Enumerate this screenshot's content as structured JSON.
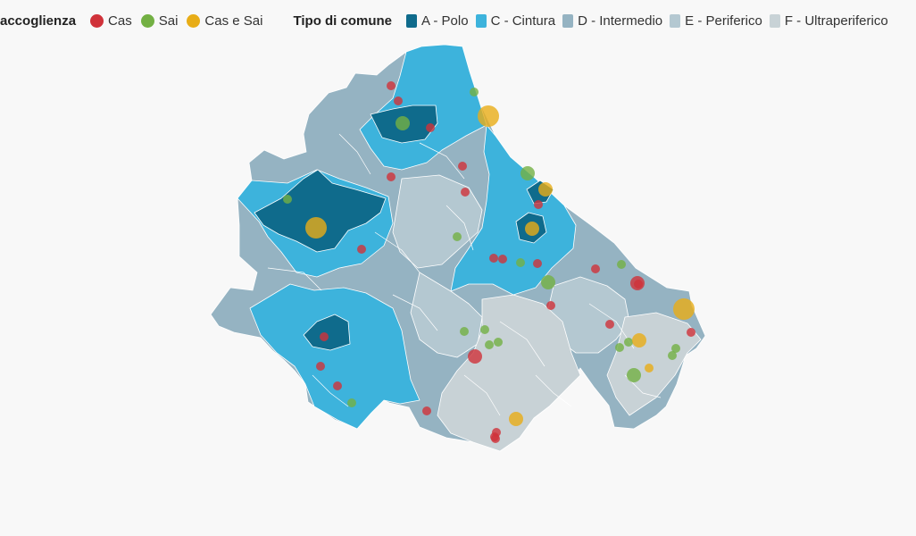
{
  "legend": {
    "acc_title": "accoglienza",
    "acc_items": [
      {
        "label": "Cas",
        "color": "#d0323a"
      },
      {
        "label": "Sai",
        "color": "#73b043"
      },
      {
        "label": "Cas e Sai",
        "color": "#e8ad17"
      }
    ],
    "tipo_title": "Tipo di comune",
    "tipo_items": [
      {
        "label": "A - Polo",
        "color": "#0f6b8c"
      },
      {
        "label": "C - Cintura",
        "color": "#3db3dc"
      },
      {
        "label": "D - Intermedio",
        "color": "#95b3c2"
      },
      {
        "label": "E - Periferico",
        "color": "#b4c8d1"
      },
      {
        "label": "F - Ultraperiferico",
        "color": "#c8d2d6"
      }
    ]
  },
  "map": {
    "region": "Abruzzo",
    "areas": [
      {
        "type": "D - Intermedio",
        "color": "#95b3c2"
      },
      {
        "type": "C - Cintura",
        "color": "#3db3dc"
      },
      {
        "type": "A - Polo",
        "color": "#0f6b8c"
      },
      {
        "type": "E - Periferico",
        "color": "#b4c8d1"
      },
      {
        "type": "F - Ultraperiferico",
        "color": "#c8d2d6"
      }
    ],
    "markers": [
      {
        "kind": "Cas",
        "size": "small"
      },
      {
        "kind": "Cas",
        "size": "small"
      },
      {
        "kind": "Sai",
        "size": "small"
      },
      {
        "kind": "Sai",
        "size": "medium"
      },
      {
        "kind": "Cas e Sai",
        "size": "large"
      },
      {
        "kind": "Cas",
        "size": "small"
      },
      {
        "kind": "Cas",
        "size": "small"
      },
      {
        "kind": "Sai",
        "size": "small"
      },
      {
        "kind": "Cas",
        "size": "small"
      },
      {
        "kind": "Sai",
        "size": "medium"
      },
      {
        "kind": "Cas e Sai",
        "size": "medium"
      },
      {
        "kind": "Cas",
        "size": "small"
      },
      {
        "kind": "Cas",
        "size": "small"
      },
      {
        "kind": "Cas e Sai",
        "size": "large"
      },
      {
        "kind": "Cas e Sai",
        "size": "medium"
      },
      {
        "kind": "Sai",
        "size": "small"
      },
      {
        "kind": "Cas",
        "size": "small"
      },
      {
        "kind": "Cas",
        "size": "small"
      },
      {
        "kind": "Cas",
        "size": "small"
      },
      {
        "kind": "Sai",
        "size": "small"
      },
      {
        "kind": "Cas",
        "size": "small"
      },
      {
        "kind": "Sai",
        "size": "small"
      },
      {
        "kind": "Cas",
        "size": "small"
      },
      {
        "kind": "Sai",
        "size": "medium"
      },
      {
        "kind": "Cas",
        "size": "small"
      },
      {
        "kind": "Cas",
        "size": "medium"
      },
      {
        "kind": "Cas",
        "size": "small"
      },
      {
        "kind": "Cas e Sai",
        "size": "large"
      },
      {
        "kind": "Cas",
        "size": "small"
      },
      {
        "kind": "Sai",
        "size": "small"
      },
      {
        "kind": "Sai",
        "size": "small"
      },
      {
        "kind": "Sai",
        "size": "small"
      },
      {
        "kind": "Sai",
        "size": "small"
      },
      {
        "kind": "Cas",
        "size": "medium"
      },
      {
        "kind": "Cas",
        "size": "small"
      },
      {
        "kind": "Sai",
        "size": "small"
      },
      {
        "kind": "Sai",
        "size": "small"
      },
      {
        "kind": "Cas e Sai",
        "size": "medium"
      },
      {
        "kind": "Cas e Sai",
        "size": "small"
      },
      {
        "kind": "Sai",
        "size": "medium"
      },
      {
        "kind": "Sai",
        "size": "small"
      },
      {
        "kind": "Sai",
        "size": "small"
      },
      {
        "kind": "Cas",
        "size": "small"
      },
      {
        "kind": "Cas",
        "size": "small"
      },
      {
        "kind": "Cas",
        "size": "small"
      },
      {
        "kind": "Cas",
        "size": "small"
      },
      {
        "kind": "Sai",
        "size": "small"
      },
      {
        "kind": "Cas",
        "size": "small"
      },
      {
        "kind": "Cas e Sai",
        "size": "medium"
      },
      {
        "kind": "Cas",
        "size": "small"
      },
      {
        "kind": "Cas",
        "size": "small"
      }
    ]
  }
}
